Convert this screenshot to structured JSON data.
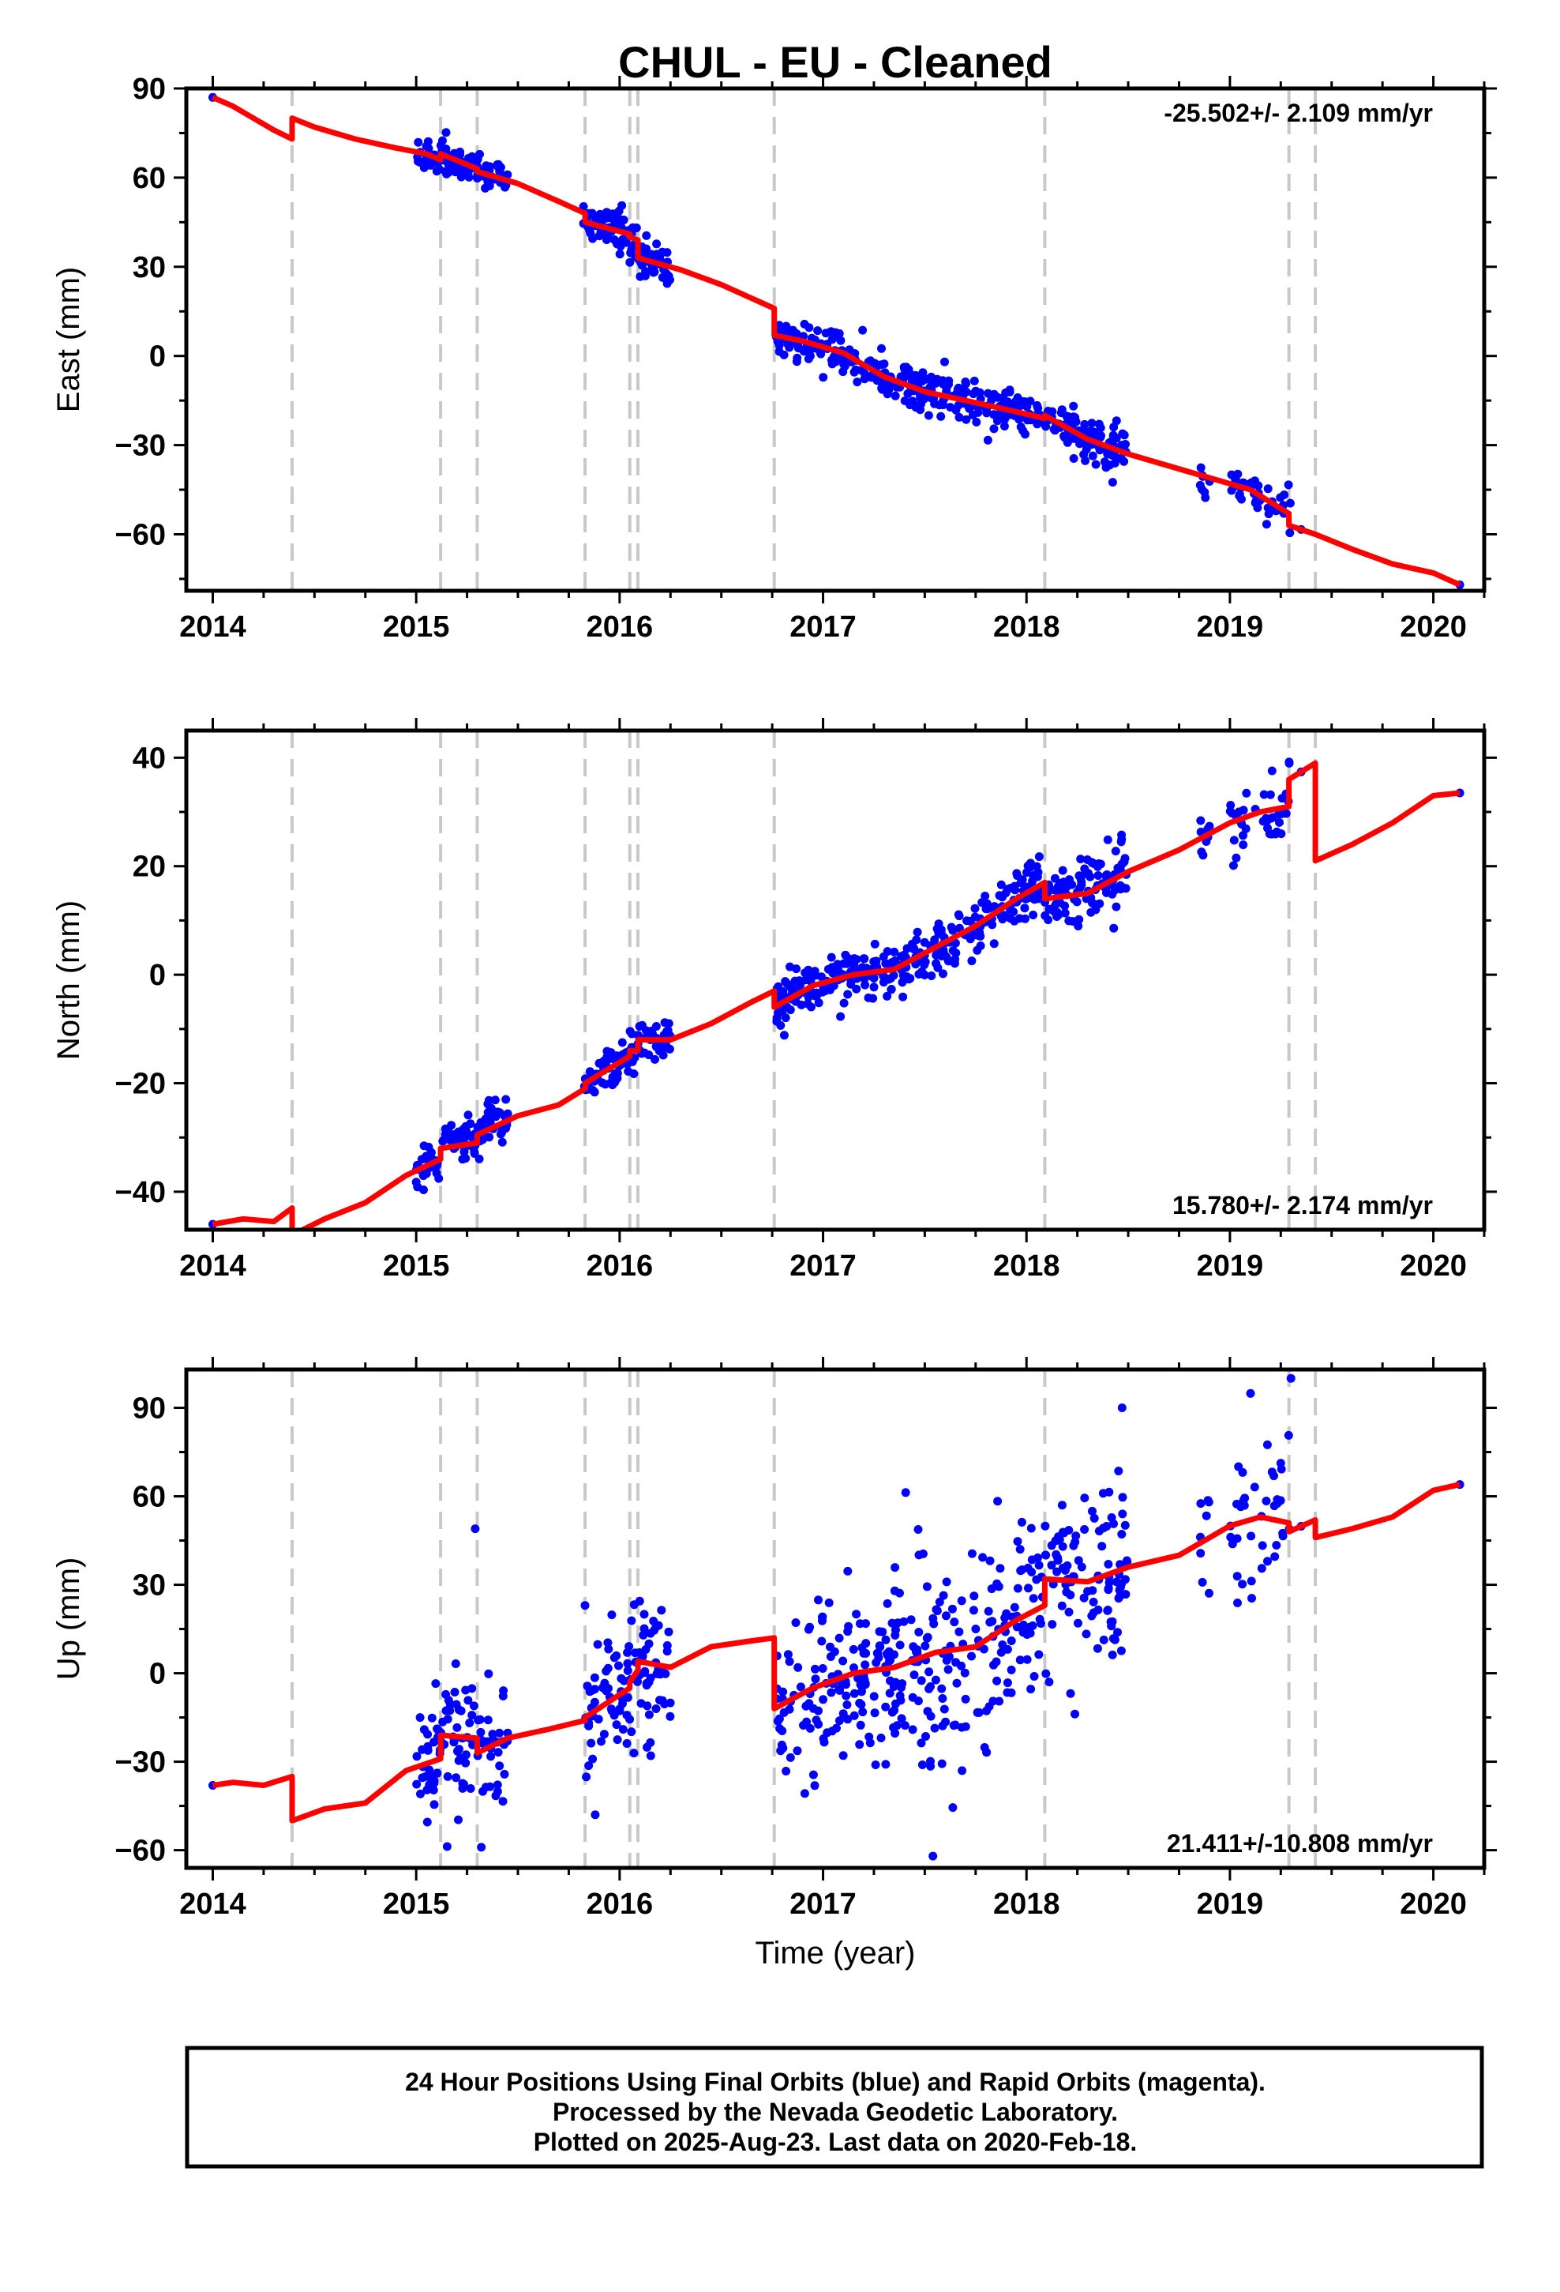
{
  "title": "CHUL  - EU - Cleaned",
  "xlabel": "Time (year)",
  "colors": {
    "points": "#0000ff",
    "model": "#ff0000",
    "breaks": "#c8c8c8",
    "frame": "#000000"
  },
  "breaks": [
    2014.39,
    2015.12,
    2015.3,
    2015.83,
    2016.05,
    2016.09,
    2016.76,
    2018.09,
    2019.29,
    2019.42
  ],
  "chart_data": [
    {
      "type": "scatter",
      "name": "east",
      "ylabel": "East (mm)",
      "rate_label": "-25.502+/- 2.109 mm/yr",
      "xlim": [
        2013.87,
        2020.25
      ],
      "ylim": [
        -79,
        90
      ],
      "xticks": [
        2014,
        2015,
        2016,
        2017,
        2018,
        2019,
        2020
      ],
      "yticks": [
        -60,
        -30,
        0,
        30,
        60,
        90
      ],
      "ytick_labels": [
        "−60",
        "−30",
        "0",
        "30",
        "60",
        "90"
      ],
      "model": [
        [
          2014.0,
          87
        ],
        [
          2014.1,
          84
        ],
        [
          2014.2,
          80
        ],
        [
          2014.3,
          76
        ],
        [
          2014.39,
          73
        ],
        [
          2014.39,
          80
        ],
        [
          2014.5,
          77
        ],
        [
          2014.7,
          73
        ],
        [
          2014.9,
          70
        ],
        [
          2015.05,
          68
        ],
        [
          2015.12,
          66
        ],
        [
          2015.12,
          68
        ],
        [
          2015.3,
          63
        ],
        [
          2015.3,
          62
        ],
        [
          2015.5,
          58
        ],
        [
          2015.7,
          52
        ],
        [
          2015.83,
          48
        ],
        [
          2015.83,
          45
        ],
        [
          2016.05,
          41
        ],
        [
          2016.05,
          40
        ],
        [
          2016.09,
          39
        ],
        [
          2016.09,
          33
        ],
        [
          2016.3,
          29
        ],
        [
          2016.5,
          24
        ],
        [
          2016.76,
          16
        ],
        [
          2016.76,
          7
        ],
        [
          2016.9,
          5
        ],
        [
          2017.1,
          1
        ],
        [
          2017.3,
          -7
        ],
        [
          2017.5,
          -12
        ],
        [
          2017.7,
          -15
        ],
        [
          2017.9,
          -18
        ],
        [
          2018.09,
          -21
        ],
        [
          2018.09,
          -20
        ],
        [
          2018.3,
          -28
        ],
        [
          2018.5,
          -33
        ],
        [
          2018.8,
          -39
        ],
        [
          2019.1,
          -45
        ],
        [
          2019.29,
          -53
        ],
        [
          2019.29,
          -53
        ],
        [
          2019.29,
          -57
        ],
        [
          2019.42,
          -60
        ],
        [
          2019.42,
          -60
        ],
        [
          2019.6,
          -65
        ],
        [
          2019.8,
          -70
        ],
        [
          2020.0,
          -73
        ],
        [
          2020.13,
          -77
        ]
      ],
      "clusters": [
        {
          "start": 2014.0,
          "end": 2014.005,
          "count": 1,
          "scatter": 0
        },
        {
          "start": 2015.0,
          "end": 2015.45,
          "count": 110,
          "scatter": 3
        },
        {
          "start": 2015.82,
          "end": 2016.25,
          "count": 110,
          "scatter": 3.5
        },
        {
          "start": 2016.77,
          "end": 2017.35,
          "count": 140,
          "scatter": 3
        },
        {
          "start": 2017.35,
          "end": 2018.08,
          "count": 170,
          "scatter": 3.5
        },
        {
          "start": 2018.09,
          "end": 2018.5,
          "count": 100,
          "scatter": 4
        },
        {
          "start": 2018.85,
          "end": 2018.9,
          "count": 8,
          "scatter": 4
        },
        {
          "start": 2019.0,
          "end": 2019.3,
          "count": 40,
          "scatter": 4
        },
        {
          "start": 2019.35,
          "end": 2019.36,
          "count": 1,
          "scatter": 0
        },
        {
          "start": 2020.13,
          "end": 2020.135,
          "count": 1,
          "scatter": 0
        }
      ]
    },
    {
      "type": "scatter",
      "name": "north",
      "ylabel": "North (mm)",
      "rate_label": "15.780+/- 2.174 mm/yr",
      "xlim": [
        2013.87,
        2020.25
      ],
      "ylim": [
        -47,
        45
      ],
      "xticks": [
        2014,
        2015,
        2016,
        2017,
        2018,
        2019,
        2020
      ],
      "yticks": [
        -40,
        -20,
        0,
        20,
        40
      ],
      "ytick_labels": [
        "−40",
        "−20",
        "0",
        "20",
        "40"
      ],
      "model": [
        [
          2014.0,
          -46
        ],
        [
          2014.15,
          -45
        ],
        [
          2014.3,
          -45.5
        ],
        [
          2014.39,
          -43
        ],
        [
          2014.39,
          -48
        ],
        [
          2014.55,
          -45
        ],
        [
          2014.75,
          -42
        ],
        [
          2014.95,
          -37
        ],
        [
          2015.12,
          -34
        ],
        [
          2015.12,
          -32
        ],
        [
          2015.3,
          -31
        ],
        [
          2015.3,
          -29.5
        ],
        [
          2015.5,
          -26
        ],
        [
          2015.7,
          -24
        ],
        [
          2015.83,
          -21
        ],
        [
          2015.83,
          -20
        ],
        [
          2016.05,
          -15
        ],
        [
          2016.05,
          -14
        ],
        [
          2016.09,
          -14
        ],
        [
          2016.09,
          -12
        ],
        [
          2016.25,
          -12
        ],
        [
          2016.45,
          -9
        ],
        [
          2016.65,
          -5
        ],
        [
          2016.76,
          -3
        ],
        [
          2016.76,
          -6
        ],
        [
          2016.95,
          -2
        ],
        [
          2017.15,
          0
        ],
        [
          2017.35,
          1
        ],
        [
          2017.55,
          5
        ],
        [
          2017.75,
          9
        ],
        [
          2017.95,
          14
        ],
        [
          2018.09,
          17
        ],
        [
          2018.09,
          14
        ],
        [
          2018.3,
          15
        ],
        [
          2018.5,
          19
        ],
        [
          2018.75,
          23
        ],
        [
          2019.0,
          28
        ],
        [
          2019.15,
          30
        ],
        [
          2019.29,
          31
        ],
        [
          2019.29,
          36
        ],
        [
          2019.42,
          39
        ],
        [
          2019.42,
          21
        ],
        [
          2019.6,
          24
        ],
        [
          2019.8,
          28
        ],
        [
          2020.0,
          33
        ],
        [
          2020.13,
          33.5
        ]
      ],
      "clusters": [
        {
          "start": 2014.0,
          "end": 2014.005,
          "count": 1,
          "scatter": 0
        },
        {
          "start": 2015.0,
          "end": 2015.45,
          "count": 110,
          "scatter": 2
        },
        {
          "start": 2015.82,
          "end": 2016.25,
          "count": 110,
          "scatter": 2
        },
        {
          "start": 2016.77,
          "end": 2017.35,
          "count": 140,
          "scatter": 2.5
        },
        {
          "start": 2017.35,
          "end": 2018.08,
          "count": 170,
          "scatter": 2.5
        },
        {
          "start": 2018.09,
          "end": 2018.5,
          "count": 100,
          "scatter": 3
        },
        {
          "start": 2018.85,
          "end": 2018.9,
          "count": 8,
          "scatter": 2
        },
        {
          "start": 2019.0,
          "end": 2019.3,
          "count": 40,
          "scatter": 4
        },
        {
          "start": 2019.35,
          "end": 2019.36,
          "count": 1,
          "scatter": 0
        },
        {
          "start": 2020.13,
          "end": 2020.135,
          "count": 1,
          "scatter": 0
        }
      ]
    },
    {
      "type": "scatter",
      "name": "up",
      "ylabel": "Up (mm)",
      "rate_label": "21.411+/-10.808 mm/yr",
      "xlim": [
        2013.87,
        2020.25
      ],
      "ylim": [
        -66,
        103
      ],
      "xticks": [
        2014,
        2015,
        2016,
        2017,
        2018,
        2019,
        2020
      ],
      "yticks": [
        -60,
        -30,
        0,
        30,
        60,
        90
      ],
      "ytick_labels": [
        "−60",
        "−30",
        "0",
        "30",
        "60",
        "90"
      ],
      "model": [
        [
          2014.0,
          -38
        ],
        [
          2014.1,
          -37
        ],
        [
          2014.25,
          -38
        ],
        [
          2014.39,
          -35
        ],
        [
          2014.39,
          -50
        ],
        [
          2014.55,
          -46
        ],
        [
          2014.75,
          -44
        ],
        [
          2014.95,
          -33
        ],
        [
          2015.12,
          -29
        ],
        [
          2015.12,
          -21
        ],
        [
          2015.3,
          -22
        ],
        [
          2015.3,
          -27
        ],
        [
          2015.45,
          -22
        ],
        [
          2015.65,
          -19
        ],
        [
          2015.83,
          -16
        ],
        [
          2015.83,
          -15
        ],
        [
          2016.05,
          -5
        ],
        [
          2016.05,
          -3
        ],
        [
          2016.09,
          1
        ],
        [
          2016.09,
          4
        ],
        [
          2016.25,
          2
        ],
        [
          2016.45,
          9
        ],
        [
          2016.65,
          11
        ],
        [
          2016.76,
          12
        ],
        [
          2016.76,
          -12
        ],
        [
          2016.95,
          -5
        ],
        [
          2017.15,
          0
        ],
        [
          2017.35,
          2
        ],
        [
          2017.55,
          7
        ],
        [
          2017.75,
          9
        ],
        [
          2017.95,
          18
        ],
        [
          2018.09,
          23
        ],
        [
          2018.09,
          32
        ],
        [
          2018.3,
          31
        ],
        [
          2018.5,
          36
        ],
        [
          2018.75,
          40
        ],
        [
          2019.0,
          50
        ],
        [
          2019.15,
          53
        ],
        [
          2019.29,
          51
        ],
        [
          2019.29,
          48
        ],
        [
          2019.42,
          52
        ],
        [
          2019.42,
          46
        ],
        [
          2019.6,
          49
        ],
        [
          2019.8,
          53
        ],
        [
          2020.0,
          62
        ],
        [
          2020.13,
          64
        ]
      ],
      "clusters": [
        {
          "start": 2014.0,
          "end": 2014.005,
          "count": 1,
          "scatter": 0
        },
        {
          "start": 2015.0,
          "end": 2015.45,
          "count": 110,
          "scatter": 10
        },
        {
          "start": 2015.82,
          "end": 2016.25,
          "count": 110,
          "scatter": 12
        },
        {
          "start": 2016.77,
          "end": 2017.35,
          "count": 140,
          "scatter": 13
        },
        {
          "start": 2017.35,
          "end": 2018.08,
          "count": 170,
          "scatter": 17
        },
        {
          "start": 2018.09,
          "end": 2018.5,
          "count": 100,
          "scatter": 15
        },
        {
          "start": 2018.85,
          "end": 2018.9,
          "count": 8,
          "scatter": 8
        },
        {
          "start": 2019.0,
          "end": 2019.3,
          "count": 40,
          "scatter": 15
        },
        {
          "start": 2019.35,
          "end": 2019.36,
          "count": 1,
          "scatter": 0
        },
        {
          "start": 2020.13,
          "end": 2020.135,
          "count": 1,
          "scatter": 0
        }
      ],
      "outliers": [
        [
          2015.29,
          49
        ],
        [
          2015.32,
          -59
        ],
        [
          2017.54,
          -62
        ],
        [
          2018.47,
          90
        ],
        [
          2019.3,
          100
        ],
        [
          2015.88,
          -48
        ]
      ]
    }
  ],
  "footer": {
    "line1": "24 Hour Positions Using Final Orbits (blue) and Rapid Orbits (magenta).",
    "line2": "Processed by the Nevada Geodetic Laboratory.",
    "line3": "Plotted on 2025-Aug-23. Last data on 2020-Feb-18."
  }
}
